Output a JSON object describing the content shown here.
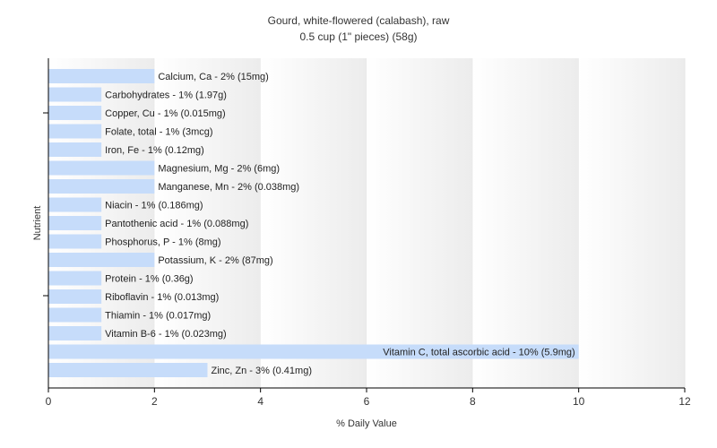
{
  "chart_data": {
    "type": "bar",
    "orientation": "horizontal",
    "title": "Gourd, white-flowered (calabash), raw",
    "subtitle": "0.5 cup (1\" pieces) (58g)",
    "xlabel": "% Daily Value",
    "ylabel": "Nutrient",
    "xlim": [
      0,
      12
    ],
    "xticks": [
      "0",
      "2",
      "4",
      "6",
      "8",
      "10",
      "12"
    ],
    "grid": "vertical bands",
    "bar_color": "#c6dcfa",
    "categories": [
      "Calcium, Ca",
      "Carbohydrates",
      "Copper, Cu",
      "Folate, total",
      "Iron, Fe",
      "Magnesium, Mg",
      "Manganese, Mn",
      "Niacin",
      "Pantothenic acid",
      "Phosphorus, P",
      "Potassium, K",
      "Protein",
      "Riboflavin",
      "Thiamin",
      "Vitamin B-6",
      "Vitamin C, total ascorbic acid",
      "Zinc, Zn"
    ],
    "values": [
      2,
      1,
      1,
      1,
      1,
      2,
      2,
      1,
      1,
      1,
      2,
      1,
      1,
      1,
      1,
      10,
      3
    ],
    "labels": [
      "Calcium, Ca - 2% (15mg)",
      "Carbohydrates - 1% (1.97g)",
      "Copper, Cu - 1% (0.015mg)",
      "Folate, total - 1% (3mcg)",
      "Iron, Fe - 1% (0.12mg)",
      "Magnesium, Mg - 2% (6mg)",
      "Manganese, Mn - 2% (0.038mg)",
      "Niacin - 1% (0.186mg)",
      "Pantothenic acid - 1% (0.088mg)",
      "Phosphorus, P - 1% (8mg)",
      "Potassium, K - 2% (87mg)",
      "Protein - 1% (0.36g)",
      "Riboflavin - 1% (0.013mg)",
      "Thiamin - 1% (0.017mg)",
      "Vitamin B-6 - 1% (0.023mg)",
      "Vitamin C, total ascorbic acid - 10% (5.9mg)",
      "Zinc, Zn - 3% (0.41mg)"
    ]
  }
}
